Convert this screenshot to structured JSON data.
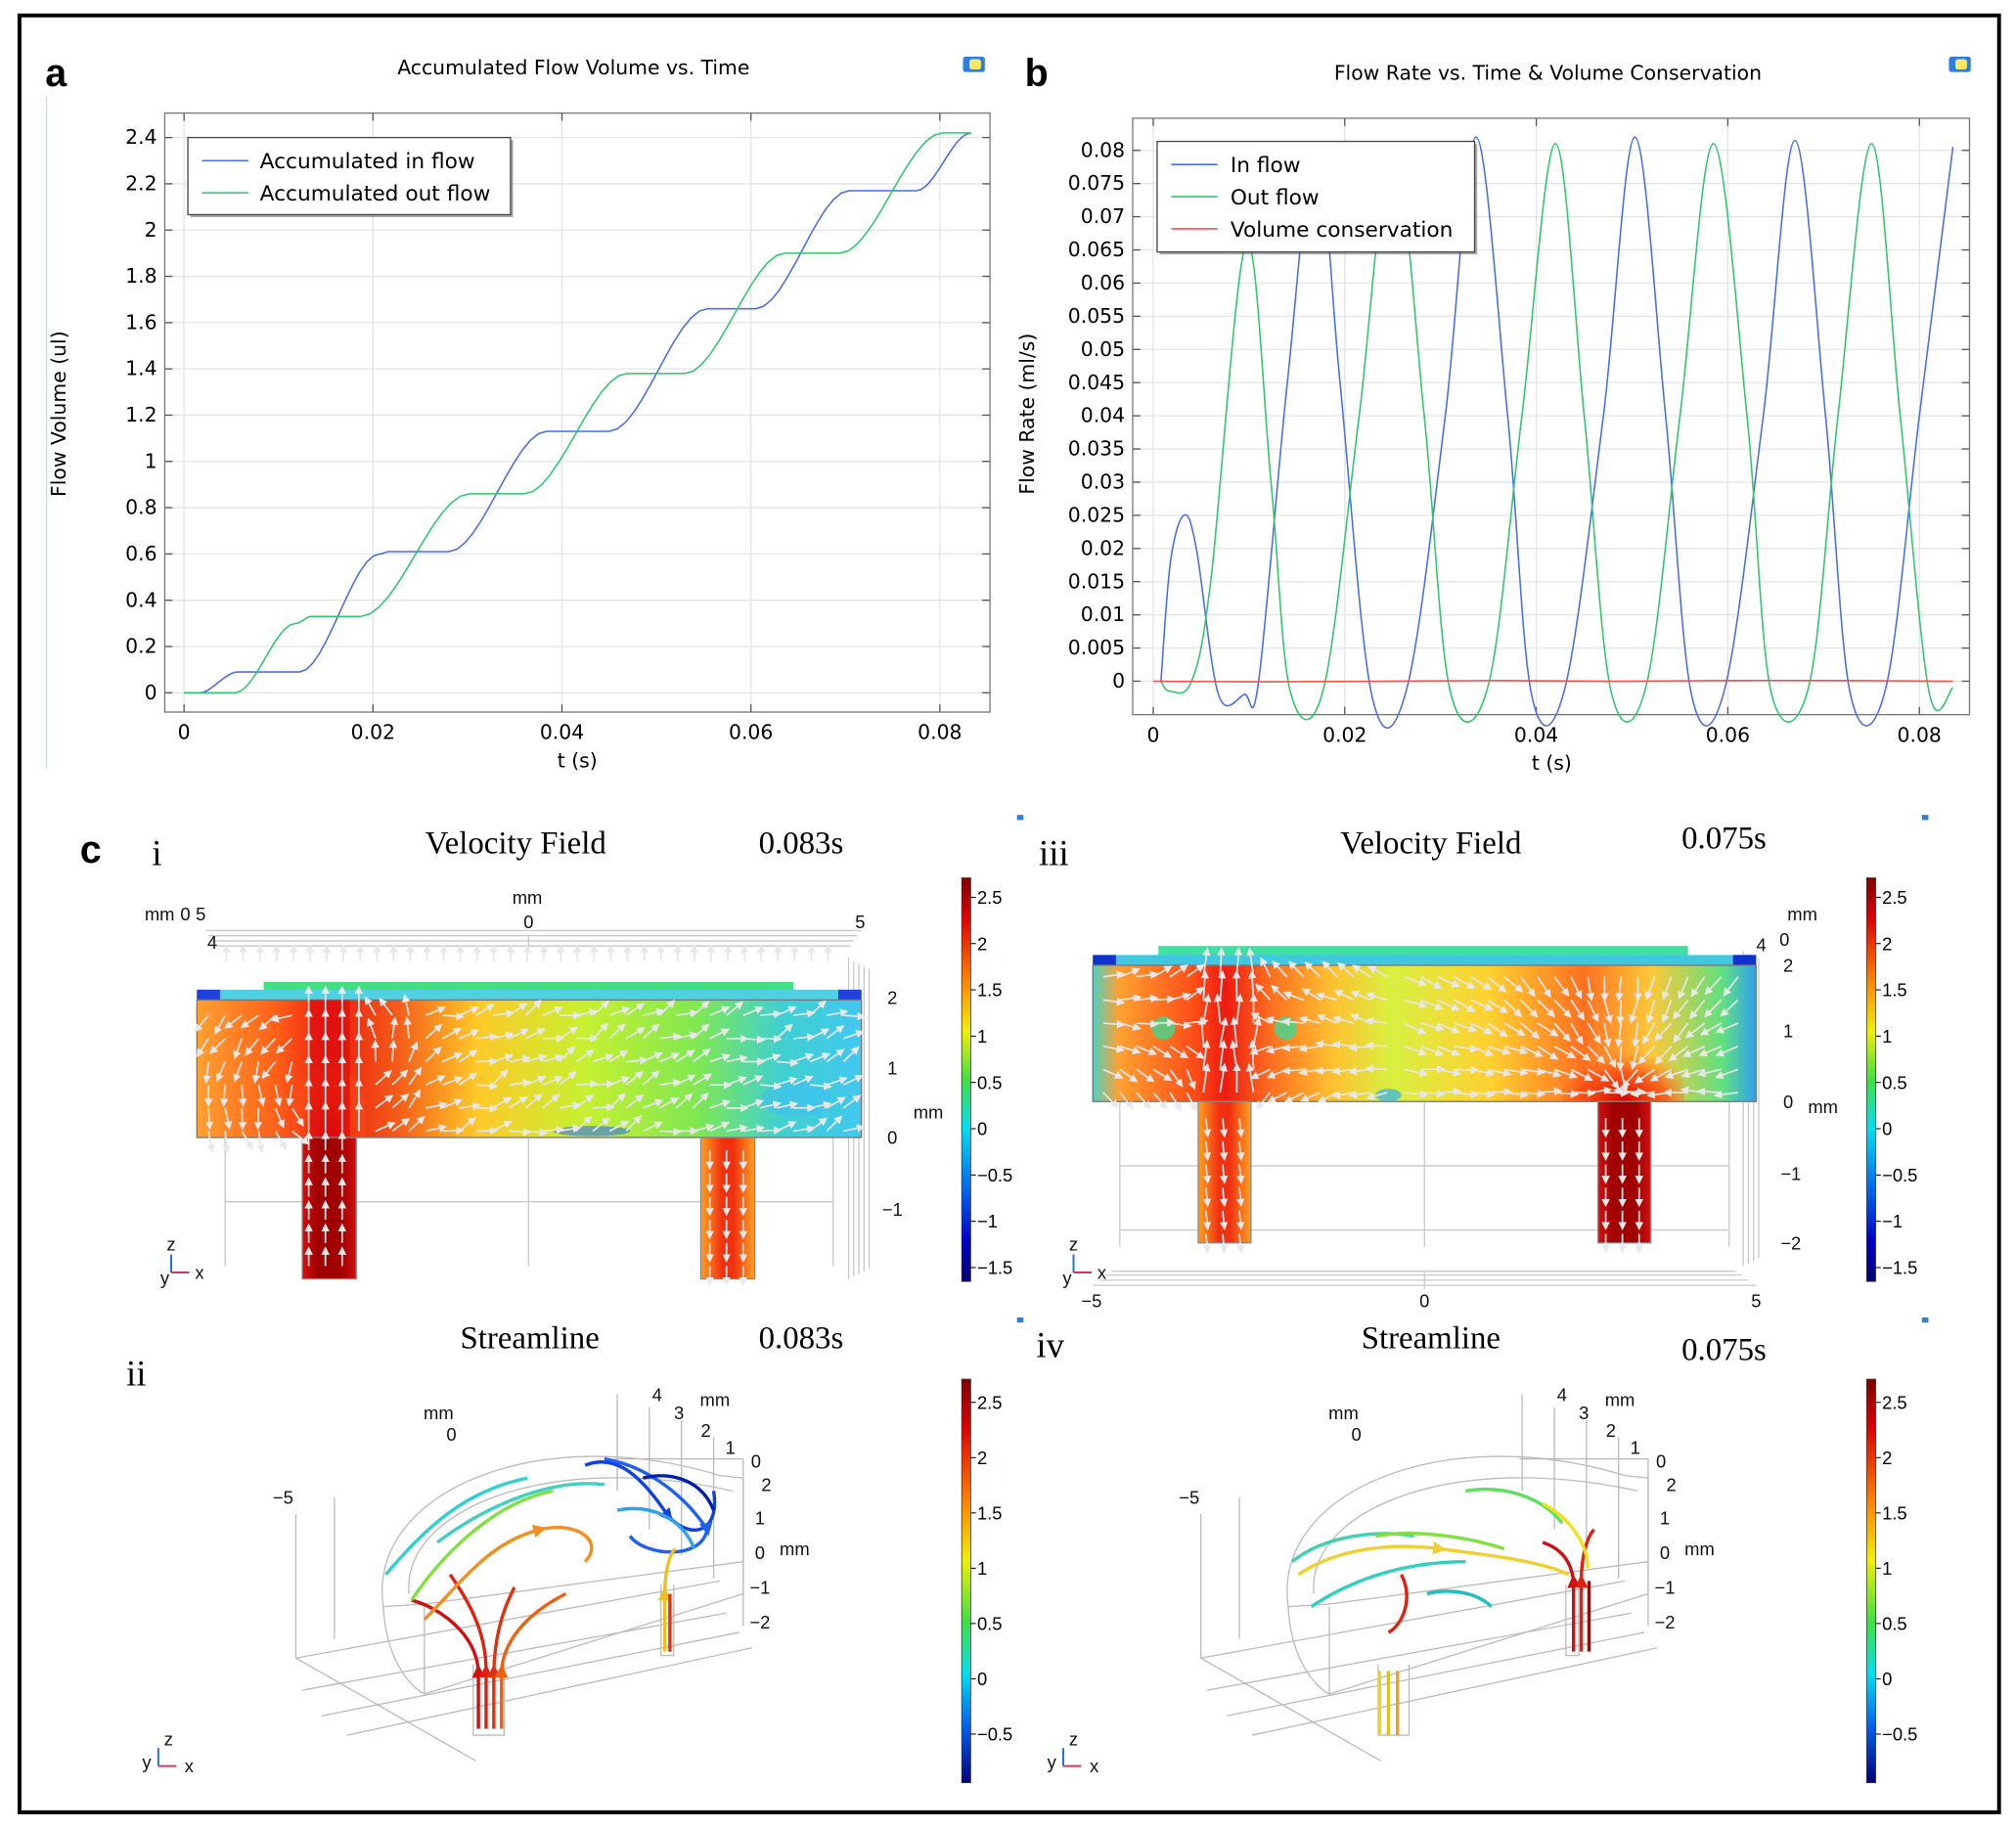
{
  "figure": {
    "panel_labels": {
      "a": "a",
      "b": "b",
      "c": "c"
    }
  },
  "chart_data": [
    {
      "type": "line",
      "title": "Accumulated Flow Volume vs. Time",
      "xlabel": "t (s)",
      "ylabel": "Flow Volume (ul)",
      "xlim": [
        0,
        0.085
      ],
      "ylim": [
        0,
        2.4
      ],
      "xticks": [
        0,
        0.02,
        0.04,
        0.06,
        0.08
      ],
      "xtick_labels": [
        "0",
        "0.02",
        "0.04",
        "0.06",
        "0.08"
      ],
      "yticks": [
        0,
        0.2,
        0.4,
        0.6,
        0.8,
        1,
        1.2,
        1.4,
        1.6,
        1.8,
        2,
        2.2,
        2.4
      ],
      "ytick_labels": [
        "0",
        "0.2",
        "0.4",
        "0.6",
        "0.8",
        "1",
        "1.2",
        "1.4",
        "1.6",
        "1.8",
        "2",
        "2.2",
        "2.4"
      ],
      "grid": true,
      "legend_position": "top-left",
      "series": [
        {
          "name": "Accumulated in flow",
          "color": "#4a6ee8",
          "x": [
            0,
            0.0016,
            0.0057,
            0.0122,
            0.0207,
            0.0217,
            0.028,
            0.0384,
            0.045,
            0.0554,
            0.0605,
            0.0704,
            0.0775,
            0.0833
          ],
          "y": [
            0,
            0,
            0.09,
            0.09,
            0.6,
            0.61,
            0.61,
            1.13,
            1.13,
            1.66,
            1.66,
            2.17,
            2.17,
            2.42
          ]
        },
        {
          "name": "Accumulated out flow",
          "color": "#2ec86a",
          "x": [
            0,
            0.0054,
            0.0118,
            0.0135,
            0.0187,
            0.0302,
            0.036,
            0.0469,
            0.053,
            0.0636,
            0.0694,
            0.0803,
            0.0833
          ],
          "y": [
            0,
            0,
            0.3,
            0.33,
            0.33,
            0.86,
            0.86,
            1.38,
            1.38,
            1.9,
            1.9,
            2.42,
            2.42
          ]
        }
      ]
    },
    {
      "type": "line",
      "title": "Flow Rate vs. Time & Volume Conservation",
      "xlabel": "t (s)",
      "ylabel": "Flow Rate (ml/s)",
      "xlim": [
        0,
        0.085
      ],
      "ylim": [
        -0.004,
        0.084
      ],
      "xticks": [
        0,
        0.02,
        0.04,
        0.06,
        0.08
      ],
      "xtick_labels": [
        "0",
        "0.02",
        "0.04",
        "0.06",
        "0.08"
      ],
      "yticks": [
        0,
        0.005,
        0.01,
        0.015,
        0.02,
        0.025,
        0.03,
        0.035,
        0.04,
        0.045,
        0.05,
        0.055,
        0.06,
        0.065,
        0.07,
        0.075,
        0.08
      ],
      "ytick_labels": [
        "0",
        "0.005",
        "0.01",
        "0.015",
        "0.02",
        "0.025",
        "0.03",
        "0.035",
        "0.04",
        "0.045",
        "0.05",
        "0.055",
        "0.06",
        "0.065",
        "0.07",
        "0.075",
        "0.08"
      ],
      "grid": true,
      "legend_position": "top-left",
      "series": [
        {
          "name": "In flow",
          "color": "#4a6ee8",
          "x": [
            0.0008,
            0.0018,
            0.0032,
            0.0045,
            0.0068,
            0.0095,
            0.011,
            0.014,
            0.017,
            0.0195,
            0.0228,
            0.0265,
            0.0305,
            0.0337,
            0.037,
            0.0395,
            0.043,
            0.047,
            0.0503,
            0.0535,
            0.0562,
            0.0597,
            0.0637,
            0.067,
            0.0702,
            0.0728,
            0.0765,
            0.08,
            0.0835
          ],
          "y": [
            0,
            0.018,
            0.025,
            0.02,
            -0.002,
            -0.002,
            0,
            0.045,
            0.081,
            0.045,
            -0.002,
            -0.001,
            0.04,
            0.082,
            0.04,
            -0.002,
            -0.001,
            0.04,
            0.082,
            0.04,
            -0.002,
            -0.001,
            0.04,
            0.0815,
            0.04,
            -0.002,
            -0.001,
            0.04,
            0.0805
          ]
        },
        {
          "name": "Out flow",
          "color": "#2ec86a",
          "x": [
            0.0008,
            0.0017,
            0.004,
            0.006,
            0.0097,
            0.0123,
            0.0143,
            0.0178,
            0.0215,
            0.025,
            0.0283,
            0.031,
            0.035,
            0.0385,
            0.042,
            0.045,
            0.0478,
            0.0515,
            0.055,
            0.0585,
            0.062,
            0.0645,
            0.0685,
            0.0715,
            0.075,
            0.078,
            0.081,
            0.0835
          ],
          "y": [
            0,
            -0.0015,
            0,
            0.015,
            0.066,
            0.03,
            -0.0015,
            -0.001,
            0.04,
            0.081,
            0.04,
            -0.0015,
            -0.0005,
            0.04,
            0.081,
            0.04,
            -0.0015,
            -0.0005,
            0.04,
            0.081,
            0.04,
            -0.0015,
            -0.0005,
            0.04,
            0.081,
            0.04,
            -0.0015,
            -0.001
          ]
        },
        {
          "name": "Volume conservation",
          "color": "#f05050",
          "x": [
            0,
            0.012,
            0.024,
            0.036,
            0.048,
            0.06,
            0.072,
            0.0835
          ],
          "y": [
            0,
            -0.0001,
            0,
            0.0001,
            0,
            0.0001,
            0.0001,
            0
          ]
        }
      ]
    }
  ],
  "c": {
    "i": {
      "roman": "i",
      "title": "Velocity Field",
      "time": "0.083s",
      "axis": [
        "mm",
        "mm",
        "0",
        "5",
        "4",
        "0",
        "5",
        "2",
        "1",
        "0",
        "−1",
        "mm"
      ],
      "triad": [
        "z",
        "y",
        "x"
      ]
    },
    "ii": {
      "roman": "ii",
      "title": "Streamline",
      "time": "0.083s",
      "axis": [
        "mm",
        "0",
        "−5",
        "4",
        "3",
        "mm",
        "2",
        "1",
        "0",
        "2",
        "1",
        "0",
        "−1",
        "−2",
        "mm"
      ],
      "triad": [
        "y",
        "z",
        "x"
      ]
    },
    "iii": {
      "roman": "iii",
      "title": "Velocity Field",
      "time": "0.075s",
      "axis": [
        "4",
        "mm",
        "0",
        "2",
        "1",
        "0",
        "mm",
        "−1",
        "−2",
        "−5",
        "0",
        "5"
      ],
      "triad": [
        "z",
        "y",
        "x"
      ]
    },
    "iv": {
      "roman": "iv",
      "title": "Streamline",
      "time": "0.075s",
      "axis": [
        "mm",
        "0",
        "−5",
        "4",
        "3",
        "mm",
        "2",
        "1",
        "0",
        "2",
        "1",
        "0",
        "−1",
        "−2",
        "mm"
      ],
      "triad": [
        "y",
        "z",
        "x"
      ]
    },
    "colorbar_velocity": {
      "range": [
        -1.65,
        2.71
      ],
      "ticks": [
        2.5,
        2,
        1.5,
        1,
        0.5,
        0,
        -0.5,
        -1,
        -1.5
      ],
      "labels": [
        "2.5",
        "2",
        "1.5",
        "1",
        "0.5",
        "0",
        "−0.5",
        "−1",
        "−1.5"
      ]
    },
    "colorbar_stream": {
      "range": [
        -0.94,
        2.71
      ],
      "ticks": [
        2.5,
        2,
        1.5,
        1,
        0.5,
        0,
        -0.5
      ],
      "labels": [
        "2.5",
        "2",
        "1.5",
        "1",
        "0.5",
        "0",
        "−0.5"
      ]
    }
  }
}
